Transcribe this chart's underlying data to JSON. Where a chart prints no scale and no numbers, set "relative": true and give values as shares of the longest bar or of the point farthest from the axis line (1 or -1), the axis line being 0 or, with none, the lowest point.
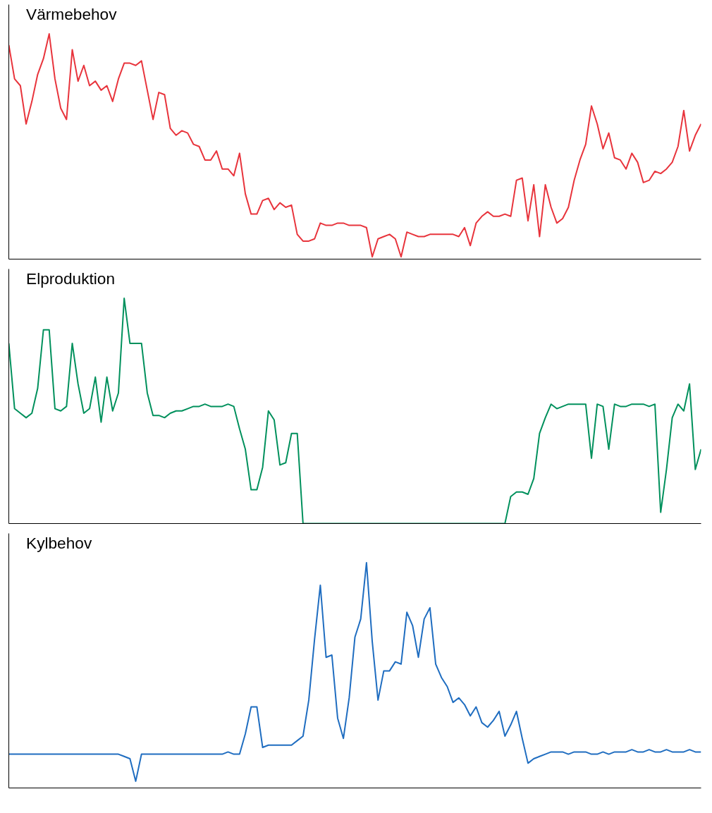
{
  "chart_data": [
    {
      "type": "line",
      "title": "Värmebehov",
      "relative": true,
      "categories": [
        null,
        null,
        null,
        null,
        null,
        null,
        null,
        null,
        null,
        null,
        null,
        null,
        null,
        null,
        null,
        null,
        null,
        null,
        null,
        null,
        null,
        null,
        null,
        null,
        null,
        null,
        null,
        null,
        null,
        null,
        null,
        null,
        null,
        null,
        null,
        null,
        null,
        null,
        null,
        null,
        null,
        null,
        null,
        null,
        null,
        null,
        null,
        null,
        null,
        null,
        null,
        null,
        null,
        null,
        null,
        null,
        null,
        null,
        null,
        null,
        null,
        null,
        null,
        null,
        null,
        null,
        null,
        null,
        null,
        null,
        null,
        null,
        null,
        null,
        null,
        null,
        null,
        null,
        null,
        null,
        null,
        null,
        null,
        null,
        null,
        null,
        null,
        null,
        null,
        null,
        null,
        null,
        null,
        null,
        null,
        null,
        null,
        null,
        null,
        null,
        null,
        null,
        null,
        null,
        null,
        null,
        null,
        null,
        null,
        null,
        null,
        null,
        null,
        null,
        null,
        null,
        null,
        null,
        null,
        null,
        null
      ],
      "series": [
        {
          "color": "#e8343c",
          "values": [
            0.95,
            0.8,
            0.77,
            0.6,
            0.7,
            0.82,
            0.89,
            1.0,
            0.8,
            0.67,
            0.62,
            0.93,
            0.79,
            0.86,
            0.77,
            0.79,
            0.75,
            0.77,
            0.7,
            0.8,
            0.87,
            0.87,
            0.86,
            0.88,
            0.75,
            0.62,
            0.74,
            0.73,
            0.58,
            0.55,
            0.57,
            0.56,
            0.51,
            0.5,
            0.44,
            0.44,
            0.48,
            0.4,
            0.4,
            0.37,
            0.47,
            0.29,
            0.2,
            0.2,
            0.26,
            0.27,
            0.22,
            0.25,
            0.23,
            0.24,
            0.11,
            0.08,
            0.08,
            0.09,
            0.16,
            0.15,
            0.15,
            0.16,
            0.16,
            0.15,
            0.15,
            0.15,
            0.14,
            0.01,
            0.09,
            0.1,
            0.11,
            0.09,
            0.01,
            0.12,
            0.11,
            0.1,
            0.1,
            0.11,
            0.11,
            0.11,
            0.11,
            0.11,
            0.1,
            0.14,
            0.06,
            0.16,
            0.19,
            0.21,
            0.19,
            0.19,
            0.2,
            0.19,
            0.35,
            0.36,
            0.17,
            0.33,
            0.1,
            0.33,
            0.23,
            0.16,
            0.18,
            0.23,
            0.35,
            0.44,
            0.51,
            0.68,
            0.6,
            0.49,
            0.56,
            0.45,
            0.44,
            0.4,
            0.47,
            0.43,
            0.34,
            0.35,
            0.39,
            0.38,
            0.4,
            0.43,
            0.5,
            0.66,
            0.48,
            0.55,
            0.6
          ]
        }
      ]
    },
    {
      "type": "line",
      "title": "Elproduktion",
      "relative": true,
      "categories": [
        null,
        null,
        null,
        null,
        null,
        null,
        null,
        null,
        null,
        null,
        null,
        null,
        null,
        null,
        null,
        null,
        null,
        null,
        null,
        null,
        null,
        null,
        null,
        null,
        null,
        null,
        null,
        null,
        null,
        null,
        null,
        null,
        null,
        null,
        null,
        null,
        null,
        null,
        null,
        null,
        null,
        null,
        null,
        null,
        null,
        null,
        null,
        null,
        null,
        null,
        null,
        null,
        null,
        null,
        null,
        null,
        null,
        null,
        null,
        null,
        null,
        null,
        null,
        null,
        null,
        null,
        null,
        null,
        null,
        null,
        null,
        null,
        null,
        null,
        null,
        null,
        null,
        null,
        null,
        null,
        null,
        null,
        null,
        null,
        null,
        null,
        null,
        null,
        null,
        null,
        null,
        null,
        null,
        null,
        null,
        null,
        null,
        null,
        null,
        null,
        null,
        null,
        null,
        null,
        null,
        null,
        null,
        null,
        null,
        null,
        null,
        null,
        null,
        null,
        null,
        null,
        null,
        null,
        null,
        null,
        null
      ],
      "series": [
        {
          "color": "#00905c",
          "values": [
            0.8,
            0.51,
            0.49,
            0.47,
            0.49,
            0.6,
            0.86,
            0.86,
            0.51,
            0.5,
            0.52,
            0.8,
            0.62,
            0.49,
            0.51,
            0.65,
            0.45,
            0.65,
            0.5,
            0.58,
            1.0,
            0.8,
            0.8,
            0.8,
            0.58,
            0.48,
            0.48,
            0.47,
            0.49,
            0.5,
            0.5,
            0.51,
            0.52,
            0.52,
            0.53,
            0.52,
            0.52,
            0.52,
            0.53,
            0.52,
            0.42,
            0.33,
            0.15,
            0.15,
            0.25,
            0.5,
            0.46,
            0.26,
            0.27,
            0.4,
            0.4,
            0,
            0,
            0,
            0,
            0,
            0,
            0,
            0,
            0,
            0,
            0,
            0,
            0,
            0,
            0,
            0,
            0,
            0,
            0,
            0,
            0,
            0,
            0,
            0,
            0,
            0,
            0,
            0,
            0,
            0,
            0,
            0,
            0,
            0,
            0,
            0,
            0.12,
            0.14,
            0.14,
            0.13,
            0.2,
            0.4,
            0.47,
            0.53,
            0.51,
            0.52,
            0.53,
            0.53,
            0.53,
            0.53,
            0.29,
            0.53,
            0.52,
            0.33,
            0.53,
            0.52,
            0.52,
            0.53,
            0.53,
            0.53,
            0.52,
            0.53,
            0.05,
            0.24,
            0.47,
            0.53,
            0.5,
            0.62,
            0.24,
            0.33
          ]
        }
      ]
    },
    {
      "type": "line",
      "title": "Kylbehov",
      "relative": true,
      "categories": [
        null,
        null,
        null,
        null,
        null,
        null,
        null,
        null,
        null,
        null,
        null,
        null,
        null,
        null,
        null,
        null,
        null,
        null,
        null,
        null,
        null,
        null,
        null,
        null,
        null,
        null,
        null,
        null,
        null,
        null,
        null,
        null,
        null,
        null,
        null,
        null,
        null,
        null,
        null,
        null,
        null,
        null,
        null,
        null,
        null,
        null,
        null,
        null,
        null,
        null,
        null,
        null,
        null,
        null,
        null,
        null,
        null,
        null,
        null,
        null,
        null,
        null,
        null,
        null,
        null,
        null,
        null,
        null,
        null,
        null,
        null,
        null,
        null,
        null,
        null,
        null,
        null,
        null,
        null,
        null,
        null,
        null,
        null,
        null,
        null,
        null,
        null,
        null,
        null,
        null,
        null,
        null,
        null,
        null,
        null,
        null,
        null,
        null,
        null,
        null,
        null,
        null,
        null,
        null,
        null,
        null,
        null,
        null,
        null,
        null,
        null,
        null,
        null,
        null,
        null,
        null,
        null,
        null,
        null,
        null,
        null
      ],
      "series": [
        {
          "color": "#1f6dc0",
          "values": [
            0.15,
            0.15,
            0.15,
            0.15,
            0.15,
            0.15,
            0.15,
            0.15,
            0.15,
            0.15,
            0.15,
            0.15,
            0.15,
            0.15,
            0.15,
            0.15,
            0.15,
            0.15,
            0.15,
            0.15,
            0.14,
            0.13,
            0.03,
            0.15,
            0.15,
            0.15,
            0.15,
            0.15,
            0.15,
            0.15,
            0.15,
            0.15,
            0.15,
            0.15,
            0.15,
            0.15,
            0.15,
            0.15,
            0.16,
            0.15,
            0.15,
            0.24,
            0.36,
            0.36,
            0.18,
            0.19,
            0.19,
            0.19,
            0.19,
            0.19,
            0.21,
            0.23,
            0.39,
            0.66,
            0.9,
            0.58,
            0.59,
            0.31,
            0.22,
            0.4,
            0.67,
            0.75,
            1.0,
            0.65,
            0.39,
            0.52,
            0.52,
            0.56,
            0.55,
            0.78,
            0.72,
            0.58,
            0.75,
            0.8,
            0.55,
            0.49,
            0.45,
            0.38,
            0.4,
            0.37,
            0.32,
            0.36,
            0.29,
            0.27,
            0.3,
            0.34,
            0.23,
            0.28,
            0.34,
            0.22,
            0.11,
            0.13,
            0.14,
            0.15,
            0.16,
            0.16,
            0.16,
            0.15,
            0.16,
            0.16,
            0.16,
            0.15,
            0.15,
            0.16,
            0.15,
            0.16,
            0.16,
            0.16,
            0.17,
            0.16,
            0.16,
            0.17,
            0.16,
            0.16,
            0.17,
            0.16,
            0.16,
            0.16,
            0.17,
            0.16,
            0.16
          ]
        }
      ]
    }
  ]
}
